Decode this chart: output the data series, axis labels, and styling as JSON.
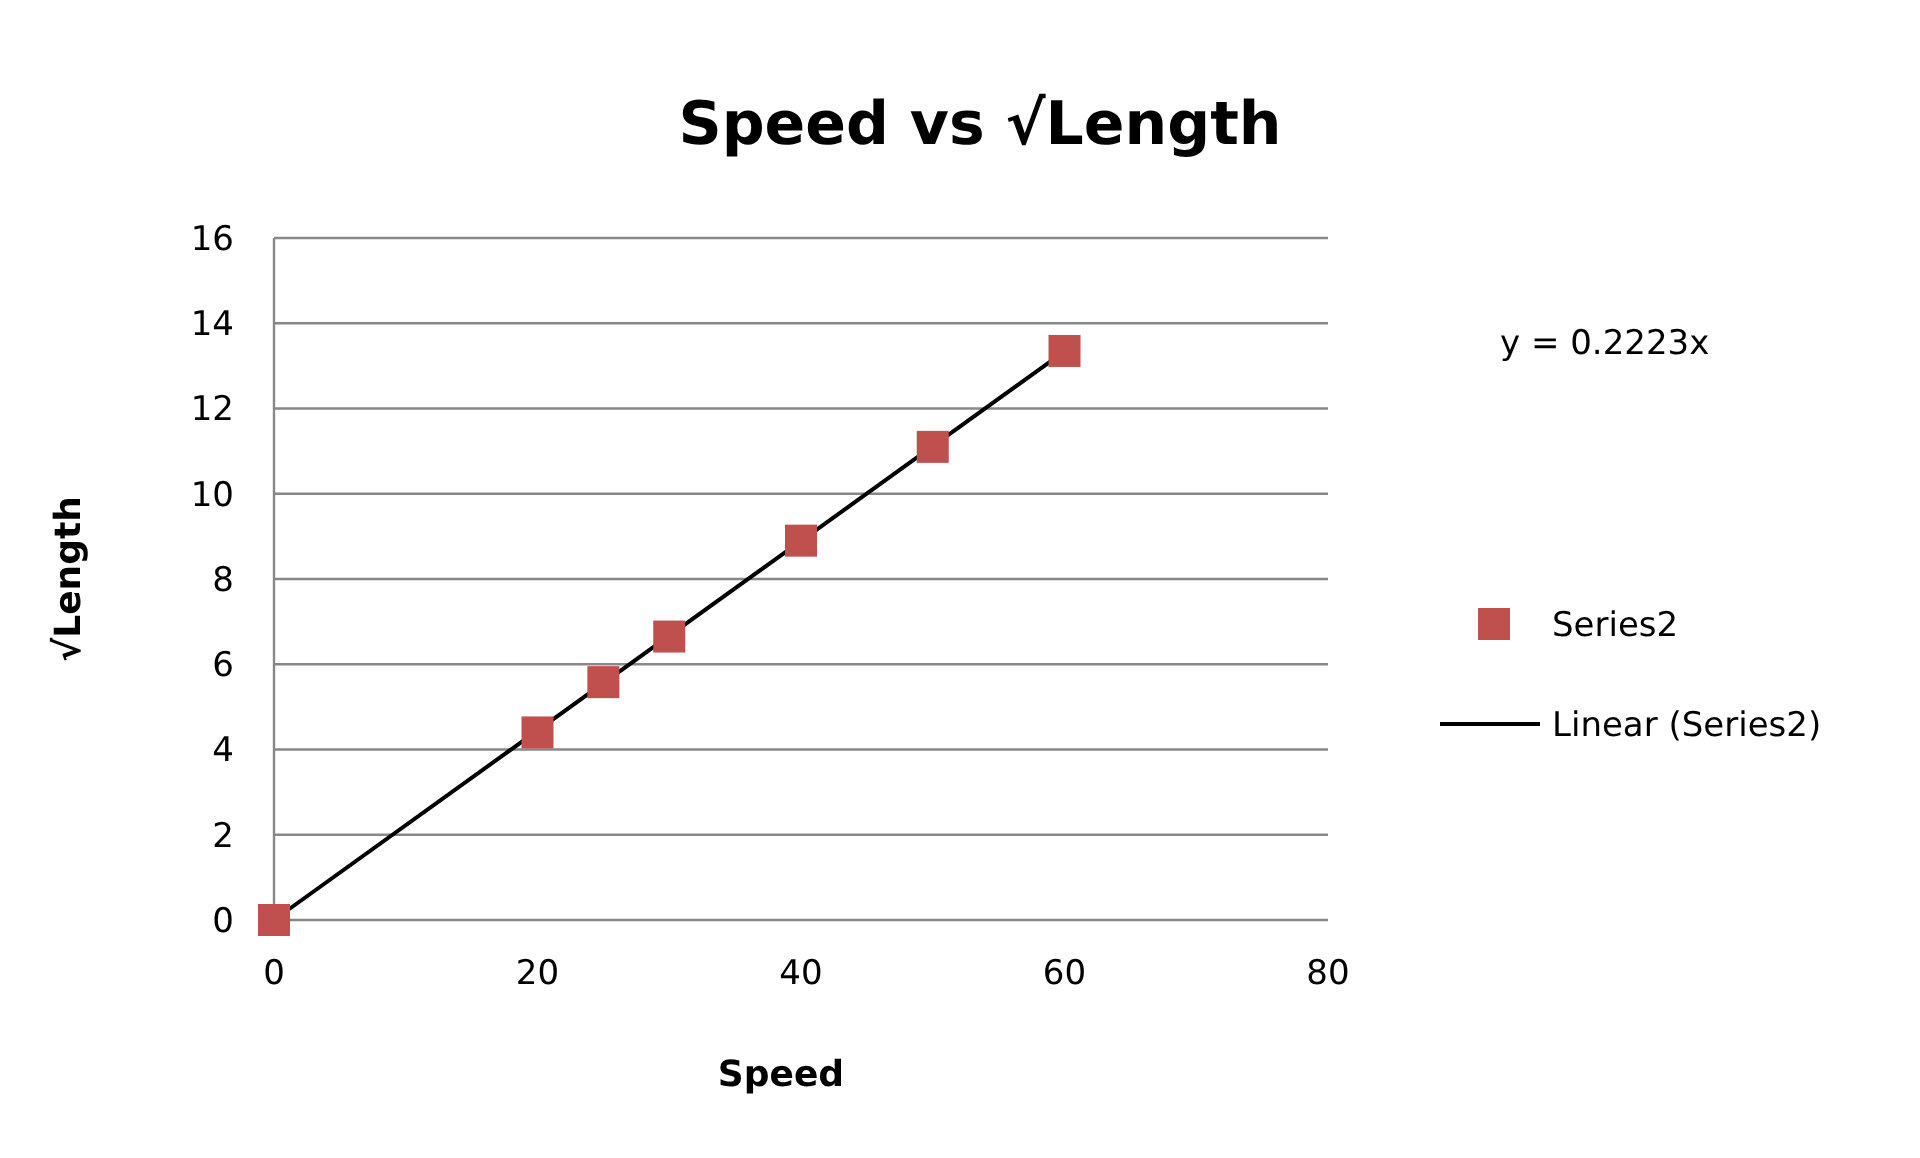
{
  "chart_data": {
    "type": "scatter",
    "title": "Speed vs √Length",
    "xlabel": "Speed",
    "ylabel": "√Length",
    "xlim": [
      0,
      80
    ],
    "xticks": [
      0,
      20,
      40,
      60,
      80
    ],
    "ylim": [
      0,
      16
    ],
    "yticks": [
      0,
      2,
      4,
      6,
      8,
      10,
      12,
      14,
      16
    ],
    "grid": "y",
    "legend": "right",
    "annotations": [
      "y = 0.2223x"
    ],
    "series": [
      {
        "name": "Series2",
        "marker": "square",
        "color": "#c0504d",
        "x": [
          0,
          20,
          25,
          30,
          40,
          50,
          60
        ],
        "values": [
          0,
          4.4,
          5.58,
          6.65,
          8.9,
          11.1,
          13.35
        ]
      },
      {
        "name": "Linear (Series2)",
        "type": "line",
        "color": "#000000",
        "line_style": "solid",
        "marker": "none",
        "x": [
          0,
          60
        ],
        "values": [
          0,
          13.34
        ]
      }
    ]
  }
}
